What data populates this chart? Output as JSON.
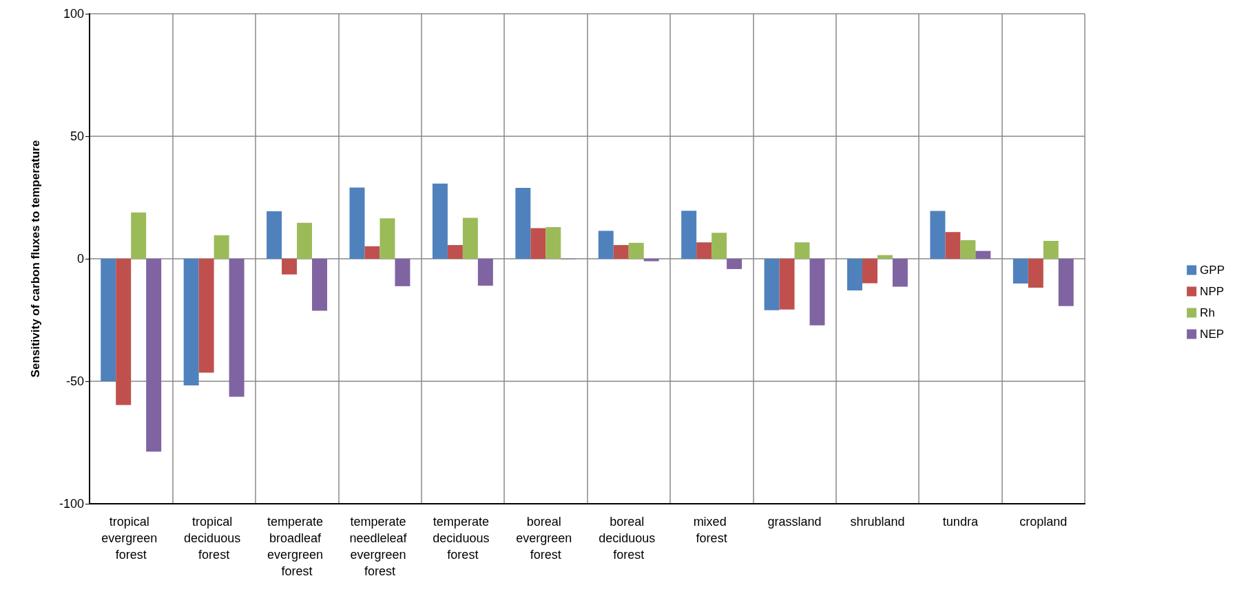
{
  "chart_data": {
    "type": "bar",
    "ylabel": "Sensitivity of carbon fluxes to temperature",
    "categories": [
      "tropical evergreen forest",
      "tropical deciduous forest",
      "temperate broadleaf evergreen forest",
      "temperate needleleaf evergreen forest",
      "temperate deciduous forest",
      "boreal evergreen forest",
      "boreal deciduous forest",
      "mixed forest",
      "grassland",
      "shrubland",
      "tundra",
      "cropland"
    ],
    "series": [
      {
        "name": "GPP",
        "color": "#4f81bd",
        "values": [
          -50,
          -51.7,
          19.4,
          29.1,
          30.7,
          28.9,
          11.4,
          19.6,
          -21,
          -12.9,
          19.5,
          -10.1
        ]
      },
      {
        "name": "NPP",
        "color": "#c0504d",
        "values": [
          -59.7,
          -46.5,
          -6.4,
          5.1,
          5.6,
          12.5,
          5.6,
          6.7,
          -20.7,
          -10,
          10.9,
          -11.8
        ]
      },
      {
        "name": "Rh",
        "color": "#9bbb59",
        "values": [
          18.9,
          9.6,
          14.7,
          16.5,
          16.7,
          12.9,
          6.5,
          10.6,
          6.7,
          1.5,
          7.6,
          7.3
        ]
      },
      {
        "name": "NEP",
        "color": "#8064a2",
        "values": [
          -78.7,
          -56.3,
          -21.2,
          -11.2,
          -11,
          -0.2,
          -1,
          -4.2,
          -27.2,
          -11.4,
          3.2,
          -19.3
        ]
      }
    ],
    "ylim": [
      -100,
      100
    ],
    "yticks": [
      -100,
      -50,
      0,
      50,
      100
    ],
    "grid": true,
    "legend": "right"
  }
}
